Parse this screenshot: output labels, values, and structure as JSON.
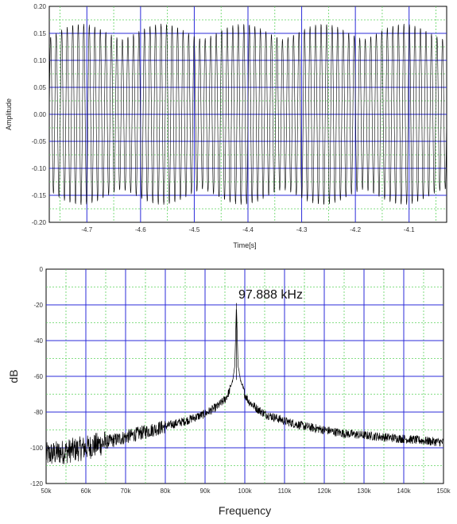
{
  "chart_data": [
    {
      "type": "line",
      "xlabel": "Time[s]",
      "ylabel": "Amplitude",
      "xlim": [
        -4.77,
        -4.03
      ],
      "ylim": [
        -0.2,
        0.2
      ],
      "x_ticks": [
        -4.7,
        -4.6,
        -4.5,
        -4.4,
        -4.3,
        -4.2,
        -4.1
      ],
      "x_tick_labels": [
        "-4.7",
        "-4.6",
        "-4.5",
        "-4.4",
        "-4.3",
        "-4.2",
        "-4.1"
      ],
      "y_ticks": [
        0.2,
        0.15,
        0.1,
        0.05,
        0.0,
        -0.05,
        -0.1,
        -0.15,
        -0.2
      ],
      "y_tick_labels": [
        "0.20",
        "0.15",
        "0.10",
        "0.05",
        "0.00",
        "-0.05",
        "-0.10",
        "-0.15",
        "-0.20"
      ],
      "grid": true,
      "grid_colors": {
        "major": "#2b2bd9",
        "minor": "#5fd35f"
      },
      "line_color": "#000000",
      "series": [
        {
          "x": [
            -4.77,
            -4.755,
            -4.74,
            -4.725,
            -4.71,
            -4.695,
            -4.68,
            -4.665,
            -4.65,
            -4.635,
            -4.62,
            -4.605,
            -4.59,
            -4.575,
            -4.56,
            -4.545,
            -4.53,
            -4.515,
            -4.5,
            -4.485,
            -4.47,
            -4.455,
            -4.44,
            -4.425,
            -4.41,
            -4.395,
            -4.38,
            -4.365,
            -4.35,
            -4.335,
            -4.32,
            -4.305,
            -4.29,
            -4.275,
            -4.26,
            -4.245,
            -4.23,
            -4.215,
            -4.2,
            -4.185,
            -4.17,
            -4.155,
            -4.14,
            -4.125,
            -4.11,
            -4.095,
            -4.08,
            -4.065,
            -4.05,
            -4.035
          ],
          "envelope": [
            0.142,
            0.152,
            0.161,
            0.166,
            0.168,
            0.166,
            0.161,
            0.153,
            0.145,
            0.139,
            0.145,
            0.153,
            0.161,
            0.166,
            0.168,
            0.166,
            0.161,
            0.153,
            0.145,
            0.139,
            0.145,
            0.153,
            0.161,
            0.166,
            0.168,
            0.166,
            0.161,
            0.153,
            0.145,
            0.139,
            0.145,
            0.153,
            0.161,
            0.166,
            0.168,
            0.166,
            0.161,
            0.153,
            0.145,
            0.139,
            0.145,
            0.153,
            0.161,
            0.166,
            0.168,
            0.166,
            0.161,
            0.153,
            0.145,
            0.139
          ]
        }
      ]
    },
    {
      "type": "line",
      "xlabel": "Frequency",
      "ylabel": "dB",
      "xlim": [
        50,
        150
      ],
      "ylim": [
        -120,
        0
      ],
      "x_ticks": [
        50,
        60,
        70,
        80,
        90,
        100,
        110,
        120,
        130,
        140,
        150
      ],
      "x_tick_labels": [
        "50k",
        "60k",
        "70k",
        "80k",
        "90k",
        "100k",
        "110k",
        "120k",
        "130k",
        "140k",
        "150k"
      ],
      "y_ticks": [
        0,
        -20,
        -40,
        -60,
        -80,
        -100,
        -120
      ],
      "y_tick_labels": [
        "0",
        "-20",
        "-40",
        "-60",
        "-80",
        "-100",
        "-120"
      ],
      "grid": true,
      "grid_colors": {
        "major": "#2b2bd9",
        "minor": "#5fd35f"
      },
      "line_color": "#000000",
      "annotation": {
        "text": "97.888 kHz",
        "x": 97.888,
        "y": -12
      },
      "series": [
        {
          "x": [
            50,
            55,
            60,
            65,
            70,
            75,
            80,
            85,
            90,
            93,
            95,
            96,
            97,
            97.5,
            97.888,
            98.3,
            99,
            100,
            101,
            103,
            105,
            110,
            115,
            120,
            125,
            130,
            135,
            140,
            145,
            150
          ],
          "y": [
            -104,
            -102,
            -100,
            -97,
            -94,
            -91,
            -88,
            -85,
            -81,
            -77,
            -73,
            -69,
            -62,
            -54,
            -19,
            -54,
            -63,
            -70,
            -74,
            -78,
            -81,
            -85,
            -88,
            -90,
            -92,
            -93,
            -94,
            -95,
            -96,
            -97
          ]
        }
      ]
    }
  ]
}
